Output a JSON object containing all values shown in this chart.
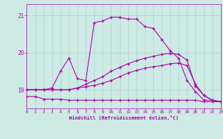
{
  "xlabel": "Windchill (Refroidissement éolien,°C)",
  "xlim": [
    0,
    23
  ],
  "ylim": [
    18.5,
    21.3
  ],
  "yticks": [
    19,
    20,
    21
  ],
  "xticks": [
    0,
    1,
    2,
    3,
    4,
    5,
    6,
    7,
    8,
    9,
    10,
    11,
    12,
    13,
    14,
    15,
    16,
    17,
    18,
    19,
    20,
    21,
    22,
    23
  ],
  "bg_color": "#ceeae4",
  "line_color": "#aa00aa",
  "grid_color": "#aad4cc",
  "series": {
    "line1_x": [
      0,
      1,
      2,
      3,
      4,
      5,
      6,
      7,
      8,
      9,
      10,
      11,
      12,
      13,
      14,
      15,
      16,
      17,
      18,
      19,
      20,
      21,
      22,
      23
    ],
    "line1_y": [
      19.0,
      19.0,
      19.0,
      19.05,
      19.5,
      19.85,
      19.3,
      19.25,
      20.8,
      20.85,
      20.95,
      20.95,
      20.9,
      20.9,
      20.7,
      20.65,
      20.35,
      20.05,
      19.85,
      19.25,
      18.95,
      18.72,
      18.72,
      18.68
    ],
    "line2_x": [
      0,
      1,
      2,
      3,
      4,
      5,
      6,
      7,
      8,
      9,
      10,
      11,
      12,
      13,
      14,
      15,
      16,
      17,
      18,
      19,
      20,
      21,
      22,
      23
    ],
    "line2_y": [
      18.82,
      18.82,
      18.75,
      18.75,
      18.75,
      18.72,
      18.72,
      18.72,
      18.72,
      18.72,
      18.72,
      18.72,
      18.72,
      18.72,
      18.72,
      18.72,
      18.72,
      18.72,
      18.72,
      18.72,
      18.72,
      18.68,
      18.68,
      18.68
    ],
    "line3_x": [
      0,
      1,
      2,
      3,
      4,
      5,
      6,
      7,
      8,
      9,
      10,
      11,
      12,
      13,
      14,
      15,
      16,
      17,
      18,
      19,
      20,
      21,
      22,
      23
    ],
    "line3_y": [
      19.0,
      19.0,
      19.0,
      19.0,
      19.0,
      19.0,
      19.05,
      19.15,
      19.25,
      19.35,
      19.5,
      19.6,
      19.7,
      19.78,
      19.85,
      19.9,
      19.95,
      19.98,
      19.95,
      19.8,
      19.1,
      18.85,
      18.72,
      18.68
    ],
    "line4_x": [
      0,
      1,
      2,
      3,
      4,
      5,
      6,
      7,
      8,
      9,
      10,
      11,
      12,
      13,
      14,
      15,
      16,
      17,
      18,
      19,
      20,
      21,
      22,
      23
    ],
    "line4_y": [
      19.0,
      19.0,
      19.0,
      19.0,
      19.0,
      19.0,
      19.05,
      19.08,
      19.12,
      19.18,
      19.25,
      19.35,
      19.45,
      19.52,
      19.58,
      19.62,
      19.65,
      19.7,
      19.72,
      19.65,
      19.15,
      18.85,
      18.72,
      18.68
    ]
  }
}
